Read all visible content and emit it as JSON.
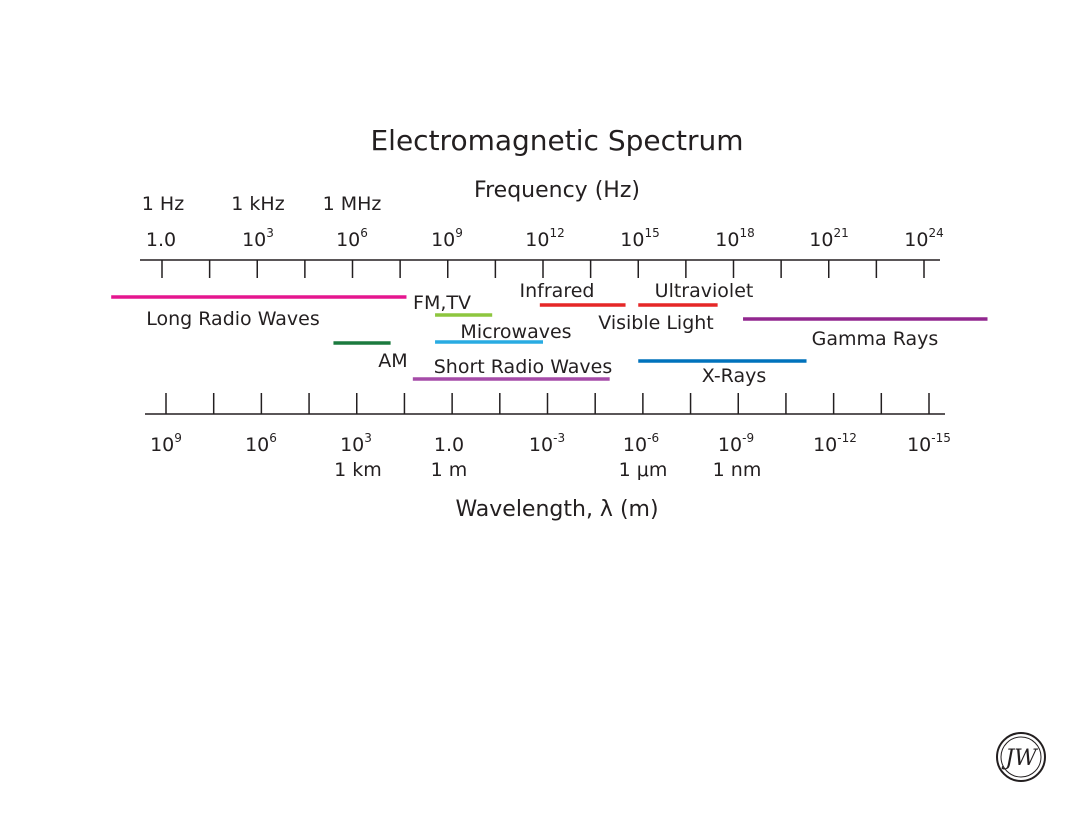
{
  "title": "Electromagnetic Spectrum",
  "frequency_axis": {
    "title": "Frequency (Hz)",
    "unit_labels": [
      "1 Hz",
      "1 kHz",
      "1 MHz"
    ],
    "ticks": [
      {
        "base": "1.0",
        "exp": ""
      },
      {
        "base": "10",
        "exp": "3"
      },
      {
        "base": "10",
        "exp": "6"
      },
      {
        "base": "10",
        "exp": "9"
      },
      {
        "base": "10",
        "exp": "12"
      },
      {
        "base": "10",
        "exp": "15"
      },
      {
        "base": "10",
        "exp": "18"
      },
      {
        "base": "10",
        "exp": "21"
      },
      {
        "base": "10",
        "exp": "24"
      }
    ]
  },
  "wavelength_axis": {
    "title": "Wavelength, λ (m)",
    "ticks": [
      {
        "base": "10",
        "exp": "9"
      },
      {
        "base": "10",
        "exp": "6"
      },
      {
        "base": "10",
        "exp": "3"
      },
      {
        "base": "1.0",
        "exp": ""
      },
      {
        "base": "10",
        "exp": "-3"
      },
      {
        "base": "10",
        "exp": "-6"
      },
      {
        "base": "10",
        "exp": "-9"
      },
      {
        "base": "10",
        "exp": "-12"
      },
      {
        "base": "10",
        "exp": "-15"
      }
    ],
    "unit_labels": [
      {
        "at_tick": 2,
        "text": "1 km"
      },
      {
        "at_tick": 3,
        "text": "1 m"
      },
      {
        "at_tick": 5,
        "text": "1 μm"
      },
      {
        "at_tick": 6,
        "text": "1 nm"
      }
    ]
  },
  "bands": [
    {
      "name": "Long Radio Waves",
      "log_f_from": -1.6,
      "log_f_to": 7.7,
      "color": "#e5168f"
    },
    {
      "name": "FM,TV",
      "log_f_from": 8.6,
      "log_f_to": 10.4,
      "color": "#8dc63f"
    },
    {
      "name": "AM",
      "log_f_from": 5.4,
      "log_f_to": 7.2,
      "color": "#1b7a3e"
    },
    {
      "name": "Microwaves",
      "log_f_from": 8.6,
      "log_f_to": 12.0,
      "color": "#29abe2"
    },
    {
      "name": "Short Radio Waves",
      "log_f_from": 7.9,
      "log_f_to": 14.1,
      "color": "#a54ca8"
    },
    {
      "name": "Infrared",
      "log_f_from": 11.9,
      "log_f_to": 14.6,
      "color": "#e52727"
    },
    {
      "name": "Visible Light",
      "log_f_from": 14.6,
      "log_f_to": 15.0,
      "color": "#e52727"
    },
    {
      "name": "Ultraviolet",
      "log_f_from": 15.0,
      "log_f_to": 17.5,
      "color": "#e52727"
    },
    {
      "name": "X-Rays",
      "log_f_from": 15.0,
      "log_f_to": 20.3,
      "color": "#0072bc"
    },
    {
      "name": "Gamma Rays",
      "log_f_from": 18.3,
      "log_f_to": 26.0,
      "color": "#92278f"
    }
  ],
  "logo": {
    "icon": "wiley-logo-icon",
    "text": "JW"
  }
}
